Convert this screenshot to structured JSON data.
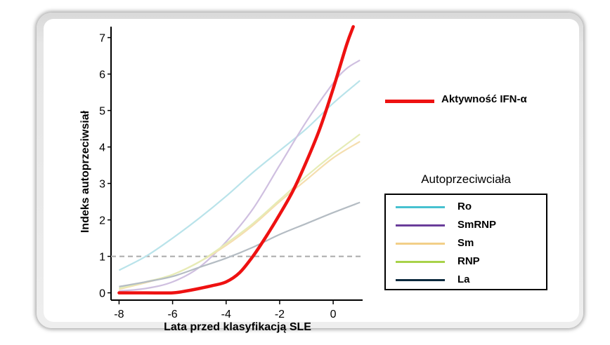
{
  "chart_data": {
    "type": "line",
    "xlabel": "Lata przed klasyfikacją SLE",
    "ylabel": "Indeks autoprzeciwsiał",
    "xlim": [
      -8.3,
      1.1
    ],
    "ylim": [
      -0.2,
      7.3
    ],
    "x_ticks": [
      "-8",
      "-6",
      "-4",
      "-2",
      "0"
    ],
    "x_tick_values": [
      -8,
      -6,
      -4,
      -2,
      0
    ],
    "y_ticks": [
      "0",
      "1",
      "2",
      "3",
      "4",
      "5",
      "6",
      "7"
    ],
    "y_tick_values": [
      0,
      1,
      2,
      3,
      4,
      5,
      6,
      7
    ],
    "reference_line": {
      "y": 1,
      "style": "dashed",
      "color": "#aaaaaa"
    },
    "main_series": {
      "name": "Aktywność IFN-α",
      "color": "#ee1111",
      "x": [
        -8,
        -7,
        -6,
        -5.5,
        -5,
        -4.5,
        -4,
        -3.5,
        -3,
        -2.5,
        -2,
        -1.5,
        -1,
        -0.5,
        0,
        0.5,
        0.75
      ],
      "y": [
        0,
        0,
        0,
        0.05,
        0.12,
        0.2,
        0.3,
        0.55,
        1.0,
        1.55,
        2.15,
        2.8,
        3.6,
        4.5,
        5.6,
        6.8,
        7.3
      ]
    },
    "legend_title": "Autoprzeciwciała",
    "series": [
      {
        "name": "Ro",
        "color": "#b9e3ea",
        "x": [
          -8,
          -7,
          -6,
          -5,
          -4,
          -3,
          -2,
          -1,
          0,
          1
        ],
        "y": [
          0.62,
          1.0,
          1.5,
          2.05,
          2.65,
          3.3,
          3.9,
          4.5,
          5.2,
          5.82
        ]
      },
      {
        "name": "SmRNP",
        "color": "#cfbfe0",
        "x": [
          -8,
          -7,
          -6,
          -5,
          -4,
          -3,
          -2,
          -1,
          0,
          0.5,
          1
        ],
        "y": [
          0.05,
          0.12,
          0.3,
          0.7,
          1.4,
          2.3,
          3.5,
          4.7,
          5.75,
          6.15,
          6.38
        ]
      },
      {
        "name": "Sm",
        "color": "#f5deaf",
        "x": [
          -8,
          -7,
          -6,
          -5,
          -4,
          -3,
          -2,
          -1,
          0,
          1
        ],
        "y": [
          0.1,
          0.28,
          0.5,
          0.85,
          1.3,
          1.85,
          2.5,
          3.1,
          3.7,
          4.15
        ]
      },
      {
        "name": "RNP",
        "color": "#e6ecb6",
        "x": [
          -8,
          -7,
          -6,
          -5,
          -4,
          -3,
          -2,
          -1,
          0,
          1
        ],
        "y": [
          0.12,
          0.3,
          0.5,
          0.85,
          1.35,
          1.9,
          2.55,
          3.2,
          3.8,
          4.35
        ]
      },
      {
        "name": "La",
        "color": "#b4bcc3",
        "x": [
          -8,
          -7,
          -6,
          -5,
          -4,
          -3,
          -2,
          -1,
          0,
          1
        ],
        "y": [
          0.17,
          0.3,
          0.45,
          0.7,
          0.95,
          1.25,
          1.6,
          1.9,
          2.2,
          2.48
        ]
      }
    ],
    "legend_swatch_colors": [
      "#47c1d0",
      "#6a3d9a",
      "#f2cf88",
      "#a8d24a",
      "#0c2a3e"
    ]
  }
}
